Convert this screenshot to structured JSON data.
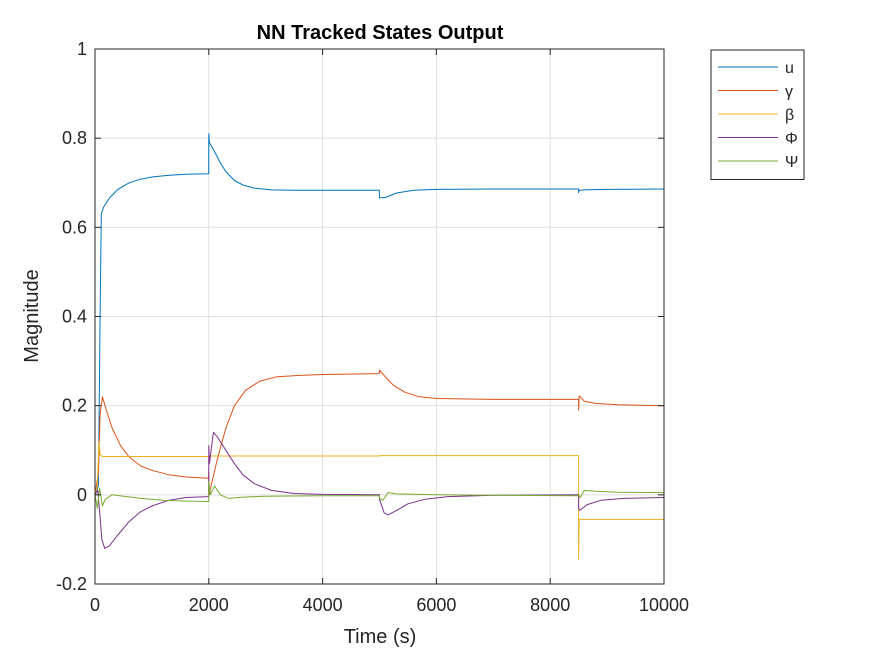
{
  "chart_data": {
    "type": "line",
    "title": "NN Tracked States Output",
    "xlabel": "Time (s)",
    "ylabel": "Magnitude",
    "xlim": [
      0,
      10000
    ],
    "ylim": [
      -0.2,
      1
    ],
    "xticks": [
      0,
      2000,
      4000,
      6000,
      8000,
      10000
    ],
    "xtick_labels": [
      "0",
      "2000",
      "4000",
      "6000",
      "8000",
      "10000"
    ],
    "yticks": [
      -0.2,
      0,
      0.2,
      0.4,
      0.6,
      0.8,
      1
    ],
    "ytick_labels": [
      "-0.2",
      "0",
      "0.2",
      "0.4",
      "0.6",
      "0.8",
      "1"
    ],
    "grid": true,
    "legend_position": "outside-top-right",
    "series": [
      {
        "name": "u",
        "color": "#0072BD",
        "points": [
          [
            0,
            0.0
          ],
          [
            60,
            0.02
          ],
          [
            90,
            0.4
          ],
          [
            110,
            0.63
          ],
          [
            150,
            0.645
          ],
          [
            250,
            0.665
          ],
          [
            400,
            0.685
          ],
          [
            600,
            0.7
          ],
          [
            800,
            0.708
          ],
          [
            1000,
            0.713
          ],
          [
            1300,
            0.717
          ],
          [
            1600,
            0.719
          ],
          [
            1999,
            0.72
          ],
          [
            2000,
            0.81
          ],
          [
            2010,
            0.79
          ],
          [
            2100,
            0.77
          ],
          [
            2200,
            0.745
          ],
          [
            2300,
            0.725
          ],
          [
            2450,
            0.705
          ],
          [
            2600,
            0.695
          ],
          [
            2800,
            0.688
          ],
          [
            3100,
            0.684
          ],
          [
            3500,
            0.683
          ],
          [
            4000,
            0.683
          ],
          [
            4999,
            0.683
          ],
          [
            5000,
            0.666
          ],
          [
            5100,
            0.667
          ],
          [
            5300,
            0.677
          ],
          [
            5600,
            0.683
          ],
          [
            6000,
            0.685
          ],
          [
            7000,
            0.686
          ],
          [
            8499,
            0.686
          ],
          [
            8500,
            0.678
          ],
          [
            8510,
            0.683
          ],
          [
            8600,
            0.684
          ],
          [
            9000,
            0.685
          ],
          [
            10000,
            0.686
          ]
        ]
      },
      {
        "name": "γ",
        "color": "#D95319",
        "points": [
          [
            0,
            0.0
          ],
          [
            60,
            0.05
          ],
          [
            90,
            0.18
          ],
          [
            130,
            0.22
          ],
          [
            200,
            0.19
          ],
          [
            300,
            0.15
          ],
          [
            450,
            0.11
          ],
          [
            600,
            0.085
          ],
          [
            800,
            0.065
          ],
          [
            1000,
            0.055
          ],
          [
            1300,
            0.045
          ],
          [
            1600,
            0.04
          ],
          [
            1999,
            0.037
          ],
          [
            2000,
            0.05
          ],
          [
            2005,
            0.0
          ],
          [
            2050,
            0.025
          ],
          [
            2150,
            0.08
          ],
          [
            2300,
            0.15
          ],
          [
            2450,
            0.2
          ],
          [
            2650,
            0.235
          ],
          [
            2900,
            0.255
          ],
          [
            3200,
            0.265
          ],
          [
            3600,
            0.268
          ],
          [
            4000,
            0.27
          ],
          [
            4999,
            0.272
          ],
          [
            5000,
            0.28
          ],
          [
            5100,
            0.265
          ],
          [
            5250,
            0.245
          ],
          [
            5450,
            0.23
          ],
          [
            5700,
            0.22
          ],
          [
            6000,
            0.216
          ],
          [
            7000,
            0.214
          ],
          [
            8499,
            0.214
          ],
          [
            8500,
            0.19
          ],
          [
            8510,
            0.222
          ],
          [
            8600,
            0.21
          ],
          [
            8800,
            0.205
          ],
          [
            9200,
            0.202
          ],
          [
            10000,
            0.2
          ]
        ]
      },
      {
        "name": "β",
        "color": "#EDB120",
        "points": [
          [
            0,
            0.0
          ],
          [
            40,
            0.02
          ],
          [
            70,
            0.12
          ],
          [
            90,
            0.09
          ],
          [
            130,
            0.086
          ],
          [
            500,
            0.086
          ],
          [
            1500,
            0.086
          ],
          [
            1999,
            0.086
          ],
          [
            2000,
            0.087
          ],
          [
            3000,
            0.087
          ],
          [
            4999,
            0.087
          ],
          [
            5000,
            0.088
          ],
          [
            6000,
            0.088
          ],
          [
            8499,
            0.088
          ],
          [
            8500,
            -0.145
          ],
          [
            8510,
            -0.055
          ],
          [
            10000,
            -0.055
          ]
        ]
      },
      {
        "name": "Φ",
        "color": "#7E2F8E",
        "points": [
          [
            0,
            0.0
          ],
          [
            50,
            0.01
          ],
          [
            90,
            -0.05
          ],
          [
            120,
            -0.1
          ],
          [
            170,
            -0.12
          ],
          [
            250,
            -0.115
          ],
          [
            400,
            -0.09
          ],
          [
            600,
            -0.06
          ],
          [
            800,
            -0.038
          ],
          [
            1000,
            -0.025
          ],
          [
            1300,
            -0.012
          ],
          [
            1600,
            -0.006
          ],
          [
            1999,
            -0.004
          ],
          [
            2000,
            0.11
          ],
          [
            2010,
            0.07
          ],
          [
            2080,
            0.14
          ],
          [
            2150,
            0.13
          ],
          [
            2300,
            0.1
          ],
          [
            2450,
            0.07
          ],
          [
            2600,
            0.045
          ],
          [
            2800,
            0.025
          ],
          [
            3100,
            0.01
          ],
          [
            3500,
            0.003
          ],
          [
            4000,
            0.001
          ],
          [
            4999,
            0.0
          ],
          [
            5000,
            -0.01
          ],
          [
            5080,
            -0.04
          ],
          [
            5150,
            -0.045
          ],
          [
            5300,
            -0.035
          ],
          [
            5500,
            -0.02
          ],
          [
            5800,
            -0.01
          ],
          [
            6200,
            -0.004
          ],
          [
            7000,
            -0.001
          ],
          [
            8499,
            0.0
          ],
          [
            8500,
            -0.03
          ],
          [
            8520,
            -0.035
          ],
          [
            8650,
            -0.022
          ],
          [
            8900,
            -0.012
          ],
          [
            9300,
            -0.008
          ],
          [
            10000,
            -0.006
          ]
        ]
      },
      {
        "name": "Ψ",
        "color": "#77AC30",
        "points": [
          [
            0,
            0.0
          ],
          [
            40,
            -0.03
          ],
          [
            80,
            0.015
          ],
          [
            100,
            0.0
          ],
          [
            130,
            -0.025
          ],
          [
            180,
            -0.01
          ],
          [
            300,
            0.0
          ],
          [
            500,
            -0.003
          ],
          [
            800,
            -0.008
          ],
          [
            1200,
            -0.012
          ],
          [
            1600,
            -0.014
          ],
          [
            1999,
            -0.015
          ],
          [
            2000,
            0.03
          ],
          [
            2030,
            0.0
          ],
          [
            2100,
            0.02
          ],
          [
            2200,
            0.0
          ],
          [
            2350,
            -0.008
          ],
          [
            2600,
            -0.005
          ],
          [
            3000,
            -0.003
          ],
          [
            4000,
            -0.002
          ],
          [
            4999,
            -0.002
          ],
          [
            5000,
            -0.008
          ],
          [
            5060,
            -0.012
          ],
          [
            5150,
            0.005
          ],
          [
            5300,
            0.002
          ],
          [
            6000,
            0.0
          ],
          [
            7000,
            -0.001
          ],
          [
            8499,
            -0.002
          ],
          [
            8500,
            0.0
          ],
          [
            8530,
            -0.006
          ],
          [
            8600,
            0.01
          ],
          [
            8800,
            0.008
          ],
          [
            9200,
            0.006
          ],
          [
            10000,
            0.005
          ]
        ]
      }
    ]
  }
}
